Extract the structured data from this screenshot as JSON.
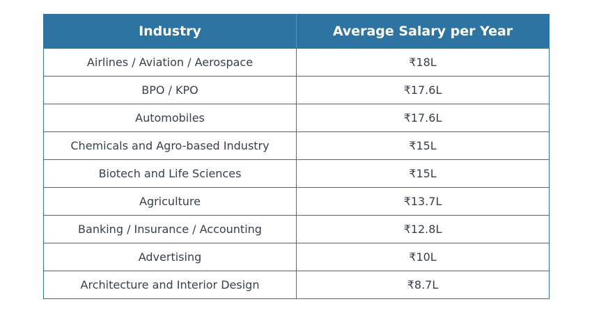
{
  "table": {
    "headers": {
      "industry": "Industry",
      "salary": "Average Salary per Year"
    },
    "rows": [
      {
        "industry": "Airlines / Aviation / Aerospace",
        "salary": "₹18L"
      },
      {
        "industry": "BPO / KPO",
        "salary": "₹17.6L"
      },
      {
        "industry": "Automobiles",
        "salary": "₹17.6L"
      },
      {
        "industry": "Chemicals and Agro-based Industry",
        "salary": "₹15L"
      },
      {
        "industry": "Biotech and Life Sciences",
        "salary": "₹15L"
      },
      {
        "industry": "Agriculture",
        "salary": "₹13.7L"
      },
      {
        "industry": "Banking / Insurance / Accounting",
        "salary": "₹12.8L"
      },
      {
        "industry": "Advertising",
        "salary": "₹10L"
      },
      {
        "industry": "Architecture and Interior Design",
        "salary": "₹8.7L"
      }
    ]
  },
  "colors": {
    "header_background": "#2e74a3",
    "header_text": "#ffffff",
    "border": "#2e74a3",
    "body_text": "#37404d"
  }
}
